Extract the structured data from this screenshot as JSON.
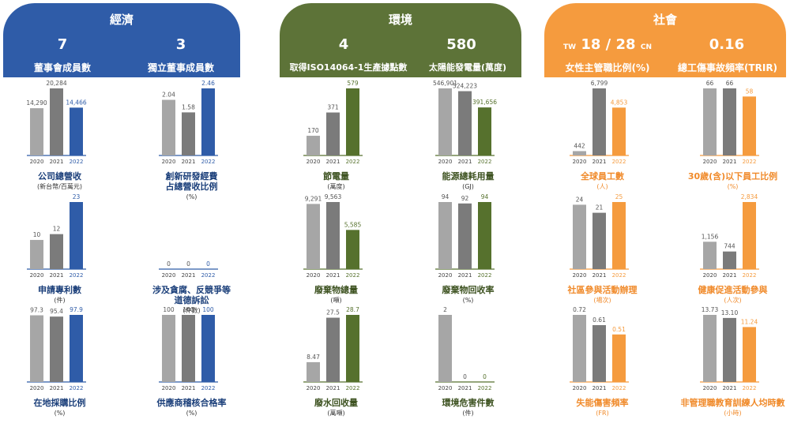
{
  "sections": [
    {
      "key": "econ",
      "title": "經濟",
      "color": "#2f5ca8",
      "kpis": [
        {
          "value": "7",
          "label": "董事會成員數"
        },
        {
          "value": "3",
          "label": "獨立董事成員數"
        }
      ]
    },
    {
      "key": "env",
      "title": "環境",
      "color": "#5d7338",
      "kpis": [
        {
          "value": "4",
          "label": "取得ISO14064-1生產據點數"
        },
        {
          "value": "580",
          "label": "太陽能發電量(萬度)"
        }
      ]
    },
    {
      "key": "soc",
      "title": "社會",
      "color": "#f59b3e",
      "kpis": [
        {
          "value_prefix": "TW",
          "value": "18 / 28",
          "value_suffix": "CN",
          "label": "女性主管職比例(%)"
        },
        {
          "value": "0.16",
          "label": "總工傷事故頻率(TRIR)"
        }
      ]
    }
  ],
  "colors": {
    "c2020": "#a6a6a6",
    "c2021": "#7b7b7b",
    "econ": "#2f5ca8",
    "env": "#56712d",
    "soc": "#f59b3e",
    "axis_econ": "#2f5ca8",
    "axis_env": "#56712d",
    "axis_soc": "#f59b3e"
  },
  "chart_data": [
    {
      "type": "bar",
      "section": "econ",
      "title": "公司總營收",
      "unit": "(新台幣/百萬元)",
      "categories": [
        "2020",
        "2021",
        "2022"
      ],
      "values": [
        14290,
        20284,
        14466
      ],
      "labels": [
        "14,290",
        "20,284",
        "14,466"
      ]
    },
    {
      "type": "bar",
      "section": "econ",
      "title": "創新研發經費\n占總營收比例",
      "unit": "(%)",
      "categories": [
        "2020",
        "2021",
        "2022"
      ],
      "values": [
        2.04,
        1.58,
        2.46
      ],
      "labels": [
        "2.04",
        "1.58",
        "2.46"
      ]
    },
    {
      "type": "bar",
      "section": "env",
      "title": "節電量",
      "unit": "(萬度)",
      "categories": [
        "2020",
        "2021",
        "2022"
      ],
      "values": [
        170,
        371,
        579
      ],
      "labels": [
        "170",
        "371",
        "579"
      ]
    },
    {
      "type": "bar",
      "section": "env",
      "title": "能源總耗用量",
      "unit": "(GJ)",
      "categories": [
        "2020",
        "2021",
        "2022"
      ],
      "values": [
        546901,
        524223,
        391656
      ],
      "labels": [
        "546,901",
        "524,223",
        "391,656"
      ]
    },
    {
      "type": "bar",
      "section": "soc",
      "title": "全球員工數",
      "unit": "(人)",
      "categories": [
        "2020",
        "2021",
        "2022"
      ],
      "values": [
        442,
        6799,
        4853
      ],
      "labels": [
        "442",
        "6,799",
        "4,853"
      ]
    },
    {
      "type": "bar",
      "section": "soc",
      "title": "30歲(含)以下員工比例",
      "unit": "(%)",
      "categories": [
        "2020",
        "2021",
        "2022"
      ],
      "values": [
        66,
        66,
        58
      ],
      "labels": [
        "66",
        "66",
        "58"
      ]
    },
    {
      "type": "bar",
      "section": "econ",
      "title": "申請專利數",
      "unit": "(件)",
      "categories": [
        "2020",
        "2021",
        "2022"
      ],
      "values": [
        10,
        12,
        23
      ],
      "labels": [
        "10",
        "12",
        "23"
      ]
    },
    {
      "type": "bar",
      "section": "econ",
      "title": "涉及貪腐、反競爭等\n道德訴訟",
      "unit": "(件數)",
      "categories": [
        "2020",
        "2021",
        "2022"
      ],
      "values": [
        0,
        0,
        0
      ],
      "labels": [
        "0",
        "0",
        "0"
      ]
    },
    {
      "type": "bar",
      "section": "env",
      "title": "廢棄物總量",
      "unit": "(噸)",
      "categories": [
        "2020",
        "2021",
        "2022"
      ],
      "values": [
        9291,
        9563,
        5585
      ],
      "labels": [
        "9,291",
        "9,563",
        "5,585"
      ]
    },
    {
      "type": "bar",
      "section": "env",
      "title": "廢棄物回收率",
      "unit": "(%)",
      "categories": [
        "2020",
        "2021",
        "2022"
      ],
      "values": [
        94,
        92,
        94
      ],
      "labels": [
        "94",
        "92",
        "94"
      ]
    },
    {
      "type": "bar",
      "section": "soc",
      "title": "社區參與活動辦理",
      "unit": "(場次)",
      "categories": [
        "2020",
        "2021",
        "2022"
      ],
      "values": [
        24,
        21,
        25
      ],
      "labels": [
        "24",
        "21",
        "25"
      ]
    },
    {
      "type": "bar",
      "section": "soc",
      "title": "健康促進活動參與",
      "unit": "(人次)",
      "categories": [
        "2020",
        "2021",
        "2022"
      ],
      "values": [
        1156,
        744,
        2834
      ],
      "labels": [
        "1,156",
        "744",
        "2,834"
      ]
    },
    {
      "type": "bar",
      "section": "econ",
      "title": "在地採購比例",
      "unit": "(%)",
      "categories": [
        "2020",
        "2021",
        "2022"
      ],
      "values": [
        97.3,
        95.4,
        97.9
      ],
      "labels": [
        "97.3",
        "95.4",
        "97.9"
      ]
    },
    {
      "type": "bar",
      "section": "econ",
      "title": "供應商稽核合格率",
      "unit": "(%)",
      "categories": [
        "2020",
        "2021",
        "2022"
      ],
      "values": [
        100,
        100,
        100
      ],
      "labels": [
        "100",
        "100",
        "100"
      ]
    },
    {
      "type": "bar",
      "section": "env",
      "title": "廢水回收量",
      "unit": "(萬噸)",
      "categories": [
        "2020",
        "2021",
        "2022"
      ],
      "values": [
        8.47,
        27.5,
        28.7
      ],
      "labels": [
        "8.47",
        "27.5",
        "28.7"
      ]
    },
    {
      "type": "bar",
      "section": "env",
      "title": "環境危害件數",
      "unit": "(件)",
      "categories": [
        "2020",
        "2021",
        "2022"
      ],
      "values": [
        2,
        0,
        0
      ],
      "labels": [
        "2",
        "0",
        "0"
      ]
    },
    {
      "type": "bar",
      "section": "soc",
      "title": "失能傷害頻率",
      "unit": "(FR)",
      "categories": [
        "2020",
        "2021",
        "2022"
      ],
      "values": [
        0.72,
        0.61,
        0.51
      ],
      "labels": [
        "0.72",
        "0.61",
        "0.51"
      ]
    },
    {
      "type": "bar",
      "section": "soc",
      "title": "非管理職教育訓練人均時數",
      "unit": "(小時)",
      "categories": [
        "2020",
        "2021",
        "2022"
      ],
      "values": [
        13.73,
        13.1,
        11.24
      ],
      "labels": [
        "13.73",
        "13.10",
        "11.24"
      ]
    }
  ]
}
